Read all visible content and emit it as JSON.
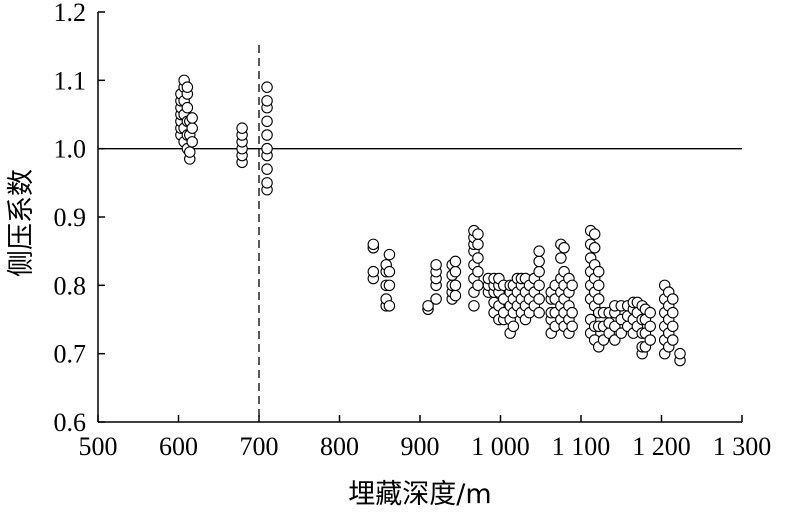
{
  "chart_data": {
    "type": "scatter",
    "xlabel": "埋藏深度/m",
    "ylabel": "侧压系数",
    "xlim": [
      500,
      1300
    ],
    "ylim": [
      0.6,
      1.2
    ],
    "x_ticks": [
      500,
      600,
      700,
      800,
      900,
      1000,
      1100,
      1200,
      1300
    ],
    "x_tick_labels": [
      "500",
      "600",
      "700",
      "800",
      "900",
      "1 000",
      "1 100",
      "1 200",
      "1 300"
    ],
    "y_ticks": [
      0.6,
      0.7,
      0.8,
      0.9,
      1.0,
      1.1,
      1.2
    ],
    "y_tick_labels": [
      "0.6",
      "0.7",
      "0.8",
      "0.9",
      "1.0",
      "1.1",
      "1.2"
    ],
    "reference_lines": [
      {
        "orientation": "horizontal",
        "value": 1.0,
        "style": "solid"
      },
      {
        "orientation": "vertical",
        "value": 700,
        "style": "dashed"
      }
    ],
    "clusters": [
      {
        "x": 603,
        "y": [
          1.02,
          1.03,
          1.04,
          1.05,
          1.06,
          1.07,
          1.08
        ]
      },
      {
        "x": 607,
        "y": [
          1.01,
          1.03,
          1.05,
          1.07,
          1.09,
          1.1
        ]
      },
      {
        "x": 611,
        "y": [
          1.0,
          1.02,
          1.04,
          1.06,
          1.08,
          1.09
        ]
      },
      {
        "x": 614,
        "y": [
          0.985,
          0.995,
          1.02,
          1.04
        ]
      },
      {
        "x": 617,
        "y": [
          1.01,
          1.03,
          1.045
        ]
      },
      {
        "x": 679,
        "y": [
          0.98,
          0.99,
          1.0,
          1.01,
          1.02,
          1.03
        ]
      },
      {
        "x": 710,
        "y": [
          0.94,
          0.95,
          0.97,
          0.99,
          1.0,
          1.02,
          1.04,
          1.06,
          1.07,
          1.09
        ]
      },
      {
        "x": 842,
        "y": [
          0.81,
          0.82,
          0.855,
          0.86
        ]
      },
      {
        "x": 858,
        "y": [
          0.77,
          0.78,
          0.8,
          0.82,
          0.83
        ]
      },
      {
        "x": 862,
        "y": [
          0.77,
          0.8,
          0.82,
          0.845
        ]
      },
      {
        "x": 910,
        "y": [
          0.765,
          0.77
        ]
      },
      {
        "x": 920,
        "y": [
          0.78,
          0.8,
          0.81,
          0.82,
          0.83
        ]
      },
      {
        "x": 940,
        "y": [
          0.78,
          0.79,
          0.8,
          0.815,
          0.83
        ]
      },
      {
        "x": 944,
        "y": [
          0.785,
          0.8,
          0.82,
          0.835
        ]
      },
      {
        "x": 967,
        "y": [
          0.77,
          0.79,
          0.81,
          0.83,
          0.85,
          0.86,
          0.87,
          0.88
        ]
      },
      {
        "x": 972,
        "y": [
          0.8,
          0.82,
          0.84,
          0.86,
          0.875
        ]
      },
      {
        "x": 985,
        "y": [
          0.79,
          0.8,
          0.81
        ]
      },
      {
        "x": 992,
        "y": [
          0.76,
          0.775,
          0.79,
          0.8,
          0.81
        ]
      },
      {
        "x": 998,
        "y": [
          0.75,
          0.77,
          0.79,
          0.8,
          0.81
        ]
      },
      {
        "x": 1004,
        "y": [
          0.75,
          0.76,
          0.78,
          0.8
        ]
      },
      {
        "x": 1012,
        "y": [
          0.73,
          0.75,
          0.77,
          0.79,
          0.8
        ]
      },
      {
        "x": 1016,
        "y": [
          0.74,
          0.76,
          0.78,
          0.8
        ]
      },
      {
        "x": 1021,
        "y": [
          0.77,
          0.79,
          0.81
        ]
      },
      {
        "x": 1026,
        "y": [
          0.76,
          0.78,
          0.8,
          0.81
        ]
      },
      {
        "x": 1031,
        "y": [
          0.75,
          0.77,
          0.79,
          0.81
        ]
      },
      {
        "x": 1036,
        "y": [
          0.76,
          0.78,
          0.8
        ]
      },
      {
        "x": 1042,
        "y": [
          0.77,
          0.79,
          0.81
        ]
      },
      {
        "x": 1048,
        "y": [
          0.76,
          0.78,
          0.8,
          0.82,
          0.835,
          0.85
        ]
      },
      {
        "x": 1063,
        "y": [
          0.73,
          0.75,
          0.76,
          0.78,
          0.79
        ]
      },
      {
        "x": 1068,
        "y": [
          0.74,
          0.76,
          0.78,
          0.8
        ]
      },
      {
        "x": 1075,
        "y": [
          0.75,
          0.77,
          0.79,
          0.81,
          0.84,
          0.86
        ]
      },
      {
        "x": 1079,
        "y": [
          0.74,
          0.76,
          0.78,
          0.8,
          0.82,
          0.855
        ]
      },
      {
        "x": 1085,
        "y": [
          0.73,
          0.75,
          0.77,
          0.79,
          0.81
        ]
      },
      {
        "x": 1089,
        "y": [
          0.74,
          0.76,
          0.8
        ]
      },
      {
        "x": 1112,
        "y": [
          0.73,
          0.75,
          0.78,
          0.8,
          0.82,
          0.84,
          0.86,
          0.88
        ]
      },
      {
        "x": 1117,
        "y": [
          0.72,
          0.74,
          0.77,
          0.79,
          0.81,
          0.83,
          0.855,
          0.875
        ]
      },
      {
        "x": 1122,
        "y": [
          0.71,
          0.74,
          0.76,
          0.78,
          0.8,
          0.82
        ]
      },
      {
        "x": 1128,
        "y": [
          0.72,
          0.74,
          0.76
        ]
      },
      {
        "x": 1135,
        "y": [
          0.73,
          0.745,
          0.76
        ]
      },
      {
        "x": 1142,
        "y": [
          0.72,
          0.74,
          0.76,
          0.77
        ]
      },
      {
        "x": 1150,
        "y": [
          0.73,
          0.75,
          0.77
        ]
      },
      {
        "x": 1158,
        "y": [
          0.74,
          0.755,
          0.77
        ]
      },
      {
        "x": 1165,
        "y": [
          0.73,
          0.75,
          0.765,
          0.775
        ]
      },
      {
        "x": 1170,
        "y": [
          0.74,
          0.76,
          0.775
        ]
      },
      {
        "x": 1176,
        "y": [
          0.7,
          0.71,
          0.73,
          0.75,
          0.77
        ]
      },
      {
        "x": 1180,
        "y": [
          0.71,
          0.73,
          0.75,
          0.765
        ]
      },
      {
        "x": 1186,
        "y": [
          0.72,
          0.74,
          0.76
        ]
      },
      {
        "x": 1204,
        "y": [
          0.7,
          0.72,
          0.74,
          0.76,
          0.78,
          0.8
        ]
      },
      {
        "x": 1209,
        "y": [
          0.71,
          0.73,
          0.75,
          0.77,
          0.79
        ]
      },
      {
        "x": 1214,
        "y": [
          0.72,
          0.74,
          0.76,
          0.78
        ]
      },
      {
        "x": 1223,
        "y": [
          0.69,
          0.7
        ]
      }
    ]
  }
}
